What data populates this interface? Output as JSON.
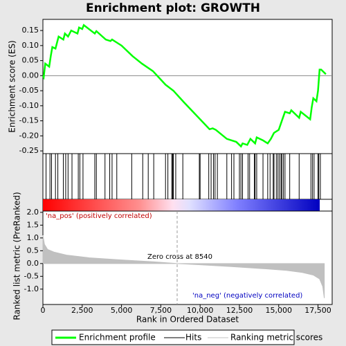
{
  "chart_data": {
    "type": "line",
    "title": "Enrichment plot: GROWTH",
    "xlabel": "Rank in Ordered Dataset",
    "ylabel": "Enrichment score (ES)",
    "xlim": [
      0,
      18400
    ],
    "xticks": [
      0,
      {
        "value": 2500,
        "label": "2,500"
      },
      {
        "value": 5000,
        "label": "5,000"
      },
      {
        "value": 7500,
        "label": "7,500"
      },
      {
        "value": 10000,
        "label": "10,000"
      },
      {
        "value": 12500,
        "label": "12,500"
      },
      {
        "value": 15000,
        "label": "15,000"
      },
      {
        "value": 17500,
        "label": "17,500"
      }
    ],
    "ylim": [
      -0.259,
      0.187
    ],
    "yticks": [
      0.15,
      {
        "value": 0.1,
        "label": "0.10"
      },
      0.05,
      {
        "value": 0,
        "label": "0.00"
      },
      -0.05,
      {
        "value": -0.1,
        "label": "-0.10"
      },
      -0.15,
      {
        "value": -0.2,
        "label": "-0.20"
      },
      -0.25
    ],
    "series": [
      {
        "name": "Enrichment profile",
        "color": "#00ff00",
        "x": [
          0,
          50,
          150,
          400,
          500,
          600,
          800,
          900,
          1000,
          1300,
          1400,
          1600,
          1800,
          2200,
          2300,
          2500,
          2600,
          3300,
          3400,
          4000,
          4300,
          4400,
          4700,
          5000,
          5700,
          6300,
          7000,
          7800,
          8300,
          9000,
          10000,
          10600,
          10800,
          11000,
          11700,
          12300,
          12600,
          12700,
          13000,
          13200,
          13500,
          13600,
          14000,
          14300,
          14500,
          14700,
          15000,
          15200,
          15400,
          15700,
          15800,
          16300,
          16400,
          17000,
          17100,
          17200,
          17400,
          17500,
          17600,
          17700,
          18000
        ],
        "values": [
          0,
          -0.005,
          0.04,
          0.03,
          0.065,
          0.095,
          0.09,
          0.11,
          0.13,
          0.12,
          0.14,
          0.13,
          0.15,
          0.14,
          0.16,
          0.155,
          0.168,
          0.14,
          0.148,
          0.12,
          0.115,
          0.12,
          0.11,
          0.1,
          0.065,
          0.04,
          0.015,
          -0.03,
          -0.05,
          -0.09,
          -0.145,
          -0.178,
          -0.175,
          -0.18,
          -0.21,
          -0.22,
          -0.235,
          -0.225,
          -0.23,
          -0.21,
          -0.225,
          -0.205,
          -0.215,
          -0.225,
          -0.21,
          -0.19,
          -0.18,
          -0.15,
          -0.12,
          -0.125,
          -0.115,
          -0.14,
          -0.12,
          -0.145,
          -0.105,
          -0.075,
          -0.085,
          -0.05,
          0.02,
          0.02,
          0.005
        ]
      }
    ],
    "hits": {
      "name": "Hits",
      "color": "#000000",
      "x": [
        200,
        450,
        550,
        800,
        950,
        1300,
        1450,
        1600,
        1850,
        2250,
        2350,
        2550,
        3300,
        3400,
        3950,
        4250,
        4400,
        4700,
        5650,
        6350,
        6700,
        7050,
        7800,
        7950,
        8200,
        8250,
        8300,
        8450,
        8900,
        9950,
        10000,
        10550,
        10700,
        10850,
        10950,
        11100,
        11700,
        12000,
        12150,
        12500,
        12600,
        12700,
        13050,
        13150,
        13450,
        13500,
        13600,
        14000,
        14300,
        14450,
        14650,
        14700,
        14850,
        14950,
        15050,
        15150,
        15200,
        15300,
        15400,
        15700,
        16300,
        17050,
        17150,
        17250,
        17500,
        17550,
        17650
      ]
    },
    "metric": {
      "name": "Ranking metric scores",
      "color": "#c0c0c0",
      "ylabel": "Ranked list metric (PreRanked)",
      "ylim": [
        -1.6,
        2.05
      ],
      "yticks": [
        {
          "value": 2,
          "label": "2.0"
        },
        1.5,
        {
          "value": 1,
          "label": "1.0"
        },
        0.5,
        {
          "value": 0,
          "label": "0.0"
        },
        -0.5,
        {
          "value": -1,
          "label": "-1.0"
        }
      ],
      "x": [
        0,
        100,
        300,
        700,
        1500,
        3000,
        5000,
        7000,
        8540,
        10000,
        12000,
        14000,
        15500,
        16500,
        17200,
        17600,
        17800,
        17900
      ],
      "values": [
        1.1,
        0.75,
        0.55,
        0.45,
        0.33,
        0.22,
        0.14,
        0.07,
        0,
        -0.05,
        -0.12,
        -0.2,
        -0.27,
        -0.35,
        -0.45,
        -0.6,
        -0.9,
        -1.35
      ],
      "zero_cross": 8540,
      "zero_cross_label": "Zero cross at 8540",
      "pos_label": "'na_pos' (positively correlated)",
      "neg_label": "'na_neg' (negatively correlated)"
    }
  }
}
